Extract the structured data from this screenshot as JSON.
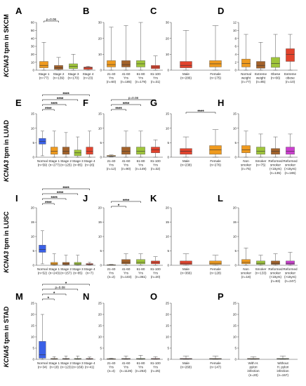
{
  "figure": {
    "row_labels": [
      {
        "italic": "KCNA3",
        "rest": " tpm in SKCM"
      },
      {
        "italic": "KCNA3",
        "rest": " tpm in LUAD"
      },
      {
        "italic": "KCNA3",
        "rest": " tpm in LUSC"
      },
      {
        "italic": "KCNA5",
        "rest": " tpm in STAD"
      }
    ]
  },
  "chart_data": [
    {
      "letter": "A",
      "type": "box",
      "ylim": [
        0,
        60
      ],
      "yticks": [
        0,
        10,
        20,
        30,
        40,
        50,
        60
      ],
      "categories": [
        [
          "Stage 1",
          "(n=77)"
        ],
        [
          "Stage 2",
          "(n=139)"
        ],
        [
          "Stage 3",
          "(n=170)"
        ],
        [
          "Stage 4",
          "(n=23)"
        ]
      ],
      "boxes": [
        [
          0,
          3,
          6,
          11,
          35
        ],
        [
          0,
          1,
          3,
          6,
          16
        ],
        [
          0,
          2,
          5,
          8,
          20
        ],
        [
          0,
          1,
          3,
          4,
          5
        ]
      ],
      "colors": [
        "#ef9a1e",
        "#a3622a",
        "#9fc53a",
        "#e2432d"
      ],
      "brackets": [
        {
          "from": 0,
          "to": 1,
          "label": "p=0.06"
        }
      ]
    },
    {
      "letter": "B",
      "type": "box",
      "ylim": [
        0,
        30
      ],
      "yticks": [
        0,
        10,
        20,
        30
      ],
      "categories": [
        [
          "21-40",
          "Yrs",
          "(n=60)"
        ],
        [
          "41-60",
          "Yrs",
          "(n=185)"
        ],
        [
          "61-80",
          "Yrs",
          "(n=179)"
        ],
        [
          "81-100",
          "Yrs",
          "(n=31)"
        ]
      ],
      "boxes": [
        [
          0,
          2,
          3.5,
          6,
          27
        ],
        [
          0,
          2,
          3.5,
          6,
          28
        ],
        [
          0,
          2,
          4,
          6,
          30
        ],
        [
          0,
          1,
          2,
          3,
          9
        ]
      ],
      "colors": [
        "#ef9a1e",
        "#a3622a",
        "#9fc53a",
        "#e2432d"
      ],
      "brackets": []
    },
    {
      "letter": "C",
      "type": "box",
      "ylim": [
        0,
        30
      ],
      "yticks": [
        0,
        10,
        20,
        30
      ],
      "categories": [
        [
          "Male",
          "(n=286)"
        ],
        [
          "Female",
          "(n=175)"
        ]
      ],
      "boxes": [
        [
          0,
          1.5,
          3,
          5.5,
          25
        ],
        [
          0,
          2,
          4,
          6,
          28
        ]
      ],
      "colors": [
        "#e2432d",
        "#ef9a1e"
      ],
      "brackets": []
    },
    {
      "letter": "D",
      "type": "box",
      "ylim": [
        0,
        12
      ],
      "yticks": [
        0,
        2,
        4,
        6,
        8,
        10,
        12
      ],
      "categories": [
        [
          "Normal",
          "weight",
          "(n=77)"
        ],
        [
          "Extreme",
          "weight",
          "(n=85)"
        ],
        [
          "Obese",
          "(n=66)"
        ],
        [
          "Extreme",
          "obese",
          "(n=10)"
        ]
      ],
      "boxes": [
        [
          0,
          0.8,
          1.7,
          2.8,
          9
        ],
        [
          0,
          0.5,
          1.2,
          2.2,
          7
        ],
        [
          0,
          0.7,
          1.7,
          3.2,
          9
        ],
        [
          0,
          2.2,
          4,
          5.4,
          9
        ]
      ],
      "colors": [
        "#ef9a1e",
        "#a3622a",
        "#9fc53a",
        "#e2432d"
      ],
      "brackets": []
    },
    {
      "letter": "E",
      "type": "box",
      "ylim": [
        0,
        15
      ],
      "yticks": [
        0,
        5,
        10,
        15
      ],
      "categories": [
        [
          "Normal",
          "(n=59)"
        ],
        [
          "Stage 1",
          "(n=277)"
        ],
        [
          "Stage 2",
          "(n=125)"
        ],
        [
          "Stage 3",
          "(n=85)"
        ],
        [
          "Stage 4",
          "(n=26)"
        ]
      ],
      "boxes": [
        [
          0.5,
          4.5,
          5.5,
          6.5,
          9
        ],
        [
          0,
          1,
          2,
          3.5,
          9
        ],
        [
          0,
          1,
          2,
          3.5,
          8.5
        ],
        [
          0,
          0.5,
          1.5,
          2.5,
          7
        ],
        [
          0,
          1,
          2,
          3.5,
          9
        ]
      ],
      "colors": [
        "#3a60e6",
        "#ef9a1e",
        "#a3622a",
        "#9fc53a",
        "#e2432d"
      ],
      "brackets": [
        {
          "from": 0,
          "to": 1,
          "label": "****"
        },
        {
          "from": 0,
          "to": 2,
          "label": "****"
        },
        {
          "from": 0,
          "to": 3,
          "label": "****"
        },
        {
          "from": 0,
          "to": 4,
          "label": "****"
        }
      ]
    },
    {
      "letter": "F",
      "type": "box",
      "ylim": [
        0,
        15
      ],
      "yticks": [
        0,
        5,
        10,
        15
      ],
      "categories": [
        [
          "21-40",
          "Yrs",
          "(n=12)"
        ],
        [
          "41-60",
          "Yrs",
          "(n=90)"
        ],
        [
          "61-80",
          "Yrs",
          "(n=149)"
        ],
        [
          "81-100",
          "Yrs",
          "(n=32)"
        ]
      ],
      "boxes": [
        [
          0.2,
          0.3,
          0.4,
          0.6,
          0.8
        ],
        [
          0,
          1,
          2,
          3.5,
          9
        ],
        [
          0,
          1,
          2,
          3.5,
          9
        ],
        [
          0,
          1.5,
          2.5,
          3.5,
          6
        ]
      ],
      "colors": [
        "#ef9a1e",
        "#a3622a",
        "#9fc53a",
        "#e2432d"
      ],
      "brackets": [
        {
          "from": 0,
          "to": 1,
          "label": "****"
        },
        {
          "from": 0,
          "to": 2,
          "label": "****"
        },
        {
          "from": 0,
          "to": 3,
          "label": "p=0.08"
        }
      ]
    },
    {
      "letter": "G",
      "type": "box",
      "ylim": [
        0,
        15
      ],
      "yticks": [
        0,
        5,
        10,
        15
      ],
      "categories": [
        [
          "Male",
          "(n=238)"
        ],
        [
          "Female",
          "(n=276)"
        ]
      ],
      "boxes": [
        [
          0,
          1,
          2,
          3,
          7
        ],
        [
          0,
          1,
          2.5,
          4,
          9.5
        ]
      ],
      "colors": [
        "#e2432d",
        "#ef9a1e"
      ],
      "brackets": [
        {
          "from": 0,
          "to": 1,
          "label": "****"
        }
      ]
    },
    {
      "letter": "H",
      "type": "box",
      "ylim": [
        0,
        15
      ],
      "yticks": [
        0,
        5,
        10,
        15
      ],
      "categories": [
        [
          "Non",
          "smoker",
          "(n=75)"
        ],
        [
          "Smoker",
          "(n=75)"
        ],
        [
          "Reformed",
          "smoker",
          "(<15yrs)",
          "(n=135)"
        ],
        [
          "Reformed",
          "smoker",
          "(>15yrs)",
          "(n=165)"
        ]
      ],
      "boxes": [
        [
          0,
          1.5,
          2.5,
          4,
          9
        ],
        [
          0,
          1,
          2,
          3.5,
          8
        ],
        [
          0,
          1,
          2,
          3,
          7
        ],
        [
          0,
          1,
          2,
          3.5,
          8
        ]
      ],
      "colors": [
        "#ef9a1e",
        "#9fc53a",
        "#a3622a",
        "#cc3fcf"
      ],
      "brackets": []
    },
    {
      "letter": "I",
      "type": "box",
      "ylim": [
        0,
        20
      ],
      "yticks": [
        0,
        5,
        10,
        15,
        20
      ],
      "categories": [
        [
          "Normal",
          "(n=52)"
        ],
        [
          "Stage 1",
          "(n=243)"
        ],
        [
          "Stage 2",
          "(n=157)"
        ],
        [
          "Stage 3",
          "(n=85)"
        ],
        [
          "Stage 4",
          "(n=7)"
        ]
      ],
      "boxes": [
        [
          0.5,
          4.5,
          5.5,
          7,
          12
        ],
        [
          0,
          0.2,
          0.5,
          1,
          4
        ],
        [
          0,
          0.2,
          0.5,
          1,
          3.5
        ],
        [
          0,
          0.2,
          0.5,
          1,
          3.5
        ],
        [
          0,
          0.2,
          0.4,
          0.6,
          1
        ]
      ],
      "colors": [
        "#3a60e6",
        "#ef9a1e",
        "#a3622a",
        "#9fc53a",
        "#e2432d"
      ],
      "brackets": [
        {
          "from": 0,
          "to": 1,
          "label": "****"
        },
        {
          "from": 0,
          "to": 2,
          "label": "****"
        },
        {
          "from": 0,
          "to": 3,
          "label": "****"
        },
        {
          "from": 0,
          "to": 4,
          "label": "****"
        }
      ]
    },
    {
      "letter": "J",
      "type": "box",
      "ylim": [
        0,
        20
      ],
      "yticks": [
        0,
        5,
        10,
        15,
        20
      ],
      "categories": [
        [
          "21-40",
          "Yrs",
          "(n=2)"
        ],
        [
          "41-60",
          "Yrs",
          "(n=103)"
        ],
        [
          "61-80",
          "Yrs",
          "(n=361)"
        ],
        [
          "81-100",
          "Yrs",
          "(n=20)"
        ]
      ],
      "boxes": [
        [
          0,
          0.05,
          0.1,
          0.2,
          0.3
        ],
        [
          0,
          0.5,
          1,
          2,
          4
        ],
        [
          0,
          0.5,
          1,
          2,
          4
        ],
        [
          0,
          0.5,
          1,
          1.5,
          3
        ]
      ],
      "colors": [
        "#ef9a1e",
        "#a3622a",
        "#9fc53a",
        "#e2432d"
      ],
      "brackets": [
        {
          "from": 0,
          "to": 1,
          "label": "*"
        },
        {
          "from": 0,
          "to": 2,
          "label": "****"
        }
      ]
    },
    {
      "letter": "K",
      "type": "box",
      "ylim": [
        0,
        20
      ],
      "yticks": [
        0,
        5,
        10,
        15,
        20
      ],
      "categories": [
        [
          "Male",
          "(n=366)"
        ],
        [
          "Female",
          "(n=128)"
        ]
      ],
      "boxes": [
        [
          0,
          0.3,
          0.7,
          1.5,
          4
        ],
        [
          0,
          0.3,
          0.7,
          1.5,
          3.5
        ]
      ],
      "colors": [
        "#e2432d",
        "#ef9a1e"
      ],
      "brackets": []
    },
    {
      "letter": "L",
      "type": "box",
      "ylim": [
        0,
        20
      ],
      "yticks": [
        0,
        5,
        10,
        15,
        20
      ],
      "categories": [
        [
          "Non",
          "smoker",
          "(n=18)"
        ],
        [
          "Smoker",
          "(n=133)"
        ],
        [
          "Reformed",
          "smoker",
          "(<15yrs)",
          "(n=83)"
        ],
        [
          "Reformed",
          "smoker",
          "(>15yrs)",
          "(n=247)"
        ]
      ],
      "boxes": [
        [
          0,
          0.5,
          1,
          2,
          6
        ],
        [
          0,
          0.3,
          0.7,
          1.5,
          3.5
        ],
        [
          0,
          0.3,
          0.7,
          1.5,
          4
        ],
        [
          0,
          0.3,
          0.7,
          1.5,
          4.5
        ]
      ],
      "colors": [
        "#ef9a1e",
        "#9fc53a",
        "#a3622a",
        "#cc3fcf"
      ],
      "brackets": []
    },
    {
      "letter": "M",
      "type": "box",
      "ylim": [
        0,
        25
      ],
      "yticks": [
        0,
        5,
        10,
        15,
        20,
        25
      ],
      "categories": [
        [
          "Normal",
          "(n=34)"
        ],
        [
          "Stage 1",
          "(n=18)"
        ],
        [
          "Stage 2",
          "(n=123)"
        ],
        [
          "Stage 3",
          "(n=169)"
        ],
        [
          "Stage 4",
          "(n=41)"
        ]
      ],
      "boxes": [
        [
          0,
          0.5,
          2,
          8,
          20
        ],
        [
          0,
          0.1,
          0.2,
          0.4,
          1.2
        ],
        [
          0,
          0.1,
          0.2,
          0.4,
          1.5
        ],
        [
          0,
          0.1,
          0.2,
          0.4,
          1.5
        ],
        [
          0,
          0.1,
          0.2,
          0.4,
          1
        ]
      ],
      "colors": [
        "#3a60e6",
        "#ef9a1e",
        "#a3622a",
        "#9fc53a",
        "#e2432d"
      ],
      "brackets": [
        {
          "from": 0,
          "to": 1,
          "label": "*"
        },
        {
          "from": 0,
          "to": 2,
          "label": "*"
        },
        {
          "from": 0,
          "to": 3,
          "label": "p=0.08"
        },
        {
          "from": 0,
          "to": 4,
          "label": "*"
        }
      ]
    },
    {
      "letter": "N",
      "type": "box",
      "ylim": [
        0,
        25
      ],
      "yticks": [
        0,
        5,
        10,
        15,
        20,
        25
      ],
      "categories": [
        [
          "21-40",
          "Yrs",
          "(n=4)"
        ],
        [
          "41-60",
          "Yrs",
          "(n=1126)"
        ],
        [
          "61-80",
          "Yrs",
          "(n=253)"
        ],
        [
          "81-100",
          "Yrs",
          "(n=25)"
        ]
      ],
      "boxes": [
        [
          0,
          0.1,
          0.2,
          0.3,
          0.5
        ],
        [
          0,
          0.1,
          0.2,
          0.4,
          1.5
        ],
        [
          0,
          0.1,
          0.2,
          0.4,
          1.8
        ],
        [
          0,
          0.1,
          0.2,
          0.4,
          1.2
        ]
      ],
      "colors": [
        "#ef9a1e",
        "#a3622a",
        "#9fc53a",
        "#e2432d"
      ],
      "brackets": []
    },
    {
      "letter": "O",
      "type": "box",
      "ylim": [
        0,
        25
      ],
      "yticks": [
        0,
        5,
        10,
        15,
        20,
        25
      ],
      "categories": [
        [
          "Male",
          "(n=268)"
        ],
        [
          "Female",
          "(n=147)"
        ]
      ],
      "boxes": [
        [
          0,
          0.1,
          0.2,
          0.4,
          1.5
        ],
        [
          0,
          0.1,
          0.2,
          0.4,
          1.5
        ]
      ],
      "colors": [
        "#e2432d",
        "#ef9a1e"
      ],
      "brackets": []
    },
    {
      "letter": "P",
      "type": "box",
      "ylim": [
        0,
        25
      ],
      "yticks": [
        0,
        5,
        10,
        15,
        20,
        25
      ],
      "categories": [
        [
          "With H.",
          "pylori",
          "infection",
          "(n=20)"
        ],
        [
          "Without",
          "H. pylori",
          "infection",
          "(n=157)"
        ]
      ],
      "boxes": [
        [
          0,
          0.1,
          0.2,
          0.4,
          1.2
        ],
        [
          0,
          0.1,
          0.2,
          0.4,
          1.5
        ]
      ],
      "colors": [
        "#ef9a1e",
        "#9fc53a"
      ],
      "brackets": []
    }
  ]
}
